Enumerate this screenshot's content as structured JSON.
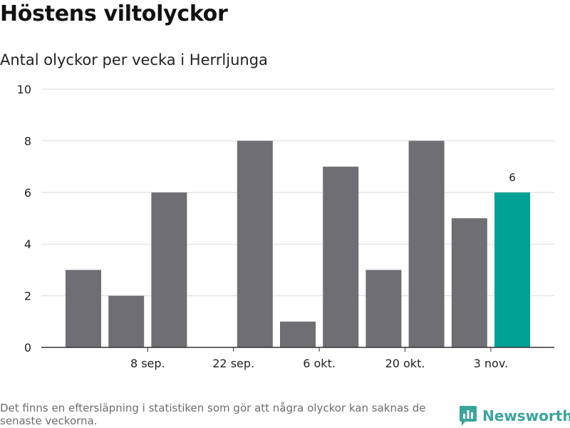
{
  "header": {
    "title": "Höstens viltolyckor",
    "subtitle": "Antal olyckor per vecka i Herrljunga"
  },
  "footer": {
    "note": "Det finns en eftersläpning i statistiken som gör att några olyckor kan saknas de senaste veckorna.",
    "brand": "Newsworthy",
    "brand_icon": "bar-chart-badge-icon"
  },
  "colors": {
    "bar": "#6f6e73",
    "highlight": "#00a295",
    "grid": "#dcdcdc",
    "axis": "#333333",
    "brand": "#3aa59b"
  },
  "chart_data": {
    "type": "bar",
    "title": "Höstens viltolyckor",
    "subtitle": "Antal olyckor per vecka i Herrljunga",
    "xlabel": "",
    "ylabel": "",
    "ylim": [
      0,
      10
    ],
    "yticks": [
      0,
      2,
      4,
      6,
      8,
      10
    ],
    "grid": true,
    "series": [
      {
        "name": "Antal olyckor",
        "values": [
          3,
          2,
          6,
          0,
          8,
          1,
          7,
          3,
          8,
          5,
          6
        ]
      }
    ],
    "x_tick_labels": [
      {
        "index": 1.5,
        "label": "8 sep."
      },
      {
        "index": 3.5,
        "label": "22 sep."
      },
      {
        "index": 5.5,
        "label": "6 okt."
      },
      {
        "index": 7.5,
        "label": "20 okt."
      },
      {
        "index": 9.5,
        "label": "3 nov."
      }
    ],
    "highlight_index": 10,
    "annotations": [
      {
        "index": 10,
        "text": "6"
      }
    ]
  }
}
